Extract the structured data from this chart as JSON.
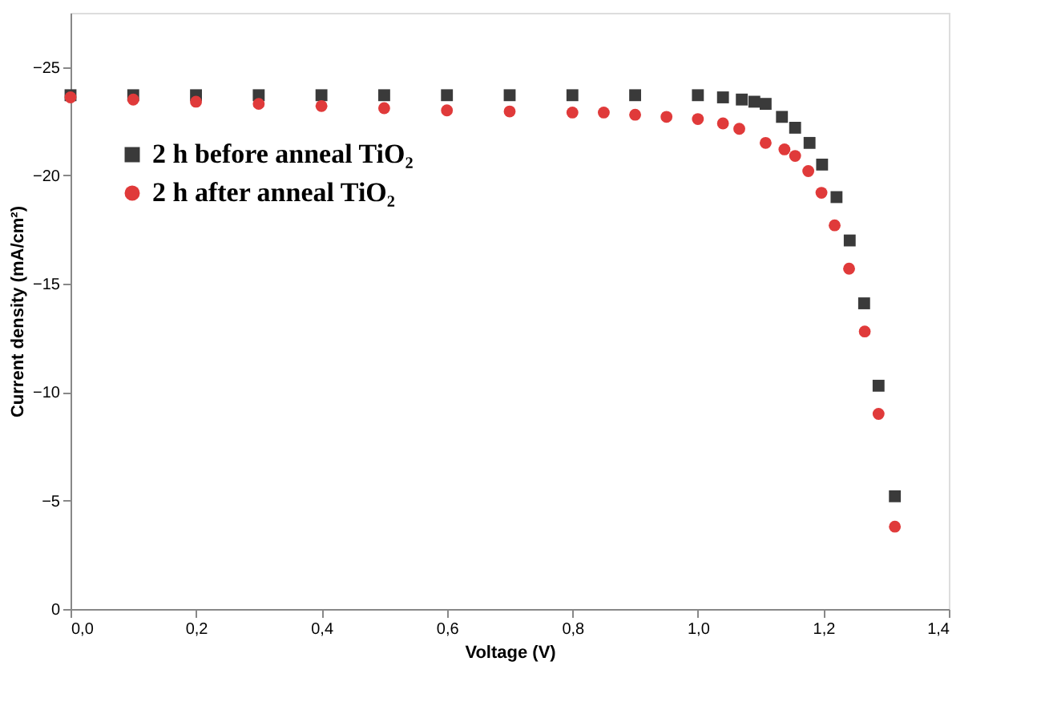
{
  "chart_data": {
    "type": "scatter",
    "xlabel": "Voltage (V)",
    "ylabel": "Current density (mA/cm²)",
    "xlim": [
      0,
      1.4
    ],
    "ylim": [
      0,
      -27.5
    ],
    "xticks": [
      {
        "value": 0,
        "label": "0,0"
      },
      {
        "value": 0.2,
        "label": "0,2"
      },
      {
        "value": 0.4,
        "label": "0,4"
      },
      {
        "value": 0.6,
        "label": "0,6"
      },
      {
        "value": 0.8,
        "label": "0,8"
      },
      {
        "value": 1,
        "label": "1,0"
      },
      {
        "value": 1.2,
        "label": "1,2"
      },
      {
        "value": 1.4,
        "label": "1,4"
      }
    ],
    "yticks": [
      0,
      {
        "value": -5,
        "label": "−5"
      },
      {
        "value": -10,
        "label": "−10"
      },
      {
        "value": -15,
        "label": "−15"
      },
      {
        "value": -20,
        "label": "−20"
      },
      {
        "value": -25,
        "label": "−25"
      }
    ],
    "grid": false,
    "legend": "top left",
    "series": [
      {
        "name": "2 h before anneal TiO₂",
        "color": "#3a3a3a",
        "marker": "square",
        "x": [
          0,
          0.1,
          0.2,
          0.3,
          0.4,
          0.5,
          0.6,
          0.7,
          0.8,
          0.9,
          1.0,
          1.04,
          1.07,
          1.09,
          1.108,
          1.134,
          1.155,
          1.178,
          1.198,
          1.221,
          1.242,
          1.265,
          1.288,
          1.314
        ],
        "values": [
          -23.7,
          -23.7,
          -23.7,
          -23.7,
          -23.7,
          -23.7,
          -23.7,
          -23.7,
          -23.7,
          -23.7,
          -23.7,
          -23.6,
          -23.5,
          -23.4,
          -23.3,
          -22.7,
          -22.2,
          -21.5,
          -20.5,
          -19.0,
          -17.0,
          -14.1,
          -10.3,
          -5.2
        ]
      },
      {
        "name": "2 h after anneal TiO₂",
        "color": "#e03a3a",
        "marker": "circle",
        "x": [
          0,
          0.1,
          0.2,
          0.3,
          0.4,
          0.5,
          0.6,
          0.7,
          0.8,
          0.85,
          0.9,
          0.95,
          1.0,
          1.04,
          1.066,
          1.108,
          1.138,
          1.155,
          1.176,
          1.197,
          1.218,
          1.241,
          1.266,
          1.288,
          1.314
        ],
        "values": [
          -23.6,
          -23.5,
          -23.4,
          -23.3,
          -23.2,
          -23.1,
          -23.0,
          -22.95,
          -22.9,
          -22.9,
          -22.8,
          -22.7,
          -22.6,
          -22.4,
          -22.15,
          -21.5,
          -21.2,
          -20.9,
          -20.2,
          -19.2,
          -17.7,
          -15.7,
          -12.8,
          -9.0,
          -3.8
        ]
      }
    ]
  }
}
